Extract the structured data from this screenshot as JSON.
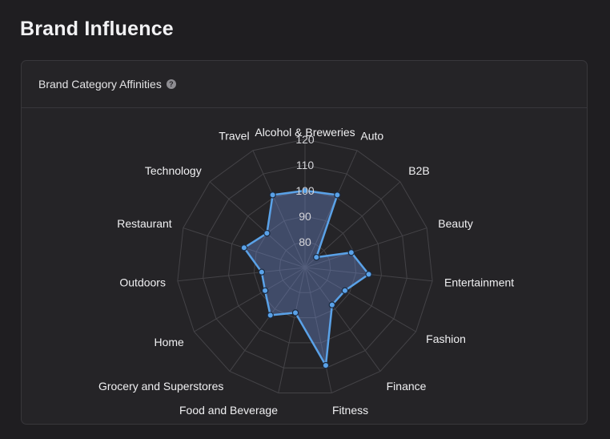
{
  "header": {
    "title": "Brand Influence"
  },
  "card": {
    "title": "Brand Category Affinities",
    "help_icon": "question-circle-icon"
  },
  "colors": {
    "background": "#1f1e21",
    "card": "#252427",
    "grid": "#444347",
    "series_line": "#5aa2e8",
    "series_fill": "rgba(110,140,210,0.38)",
    "point": "#5aa2e8"
  },
  "chart_data": {
    "type": "radar",
    "title": "",
    "categories": [
      "Alcohol & Breweries",
      "Auto",
      "B2B",
      "Beauty",
      "Entertainment",
      "Fashion",
      "Finance",
      "Fitness",
      "Food and Beverage",
      "Grocery and Superstores",
      "Home",
      "Outdoors",
      "Restaurant",
      "Technology",
      "Travel"
    ],
    "series": [
      {
        "values": [
          100,
          101,
          76,
          89,
          95,
          88,
          88,
          109,
          88,
          93,
          88,
          87,
          95,
          90,
          101
        ]
      }
    ],
    "r_axis": {
      "min": 70,
      "max": 120,
      "tick_labels": [
        "80",
        "90",
        "100",
        "110",
        "120"
      ],
      "tick_values": [
        80,
        90,
        100,
        110,
        120
      ]
    },
    "grid": "polygon",
    "legend": "none"
  }
}
